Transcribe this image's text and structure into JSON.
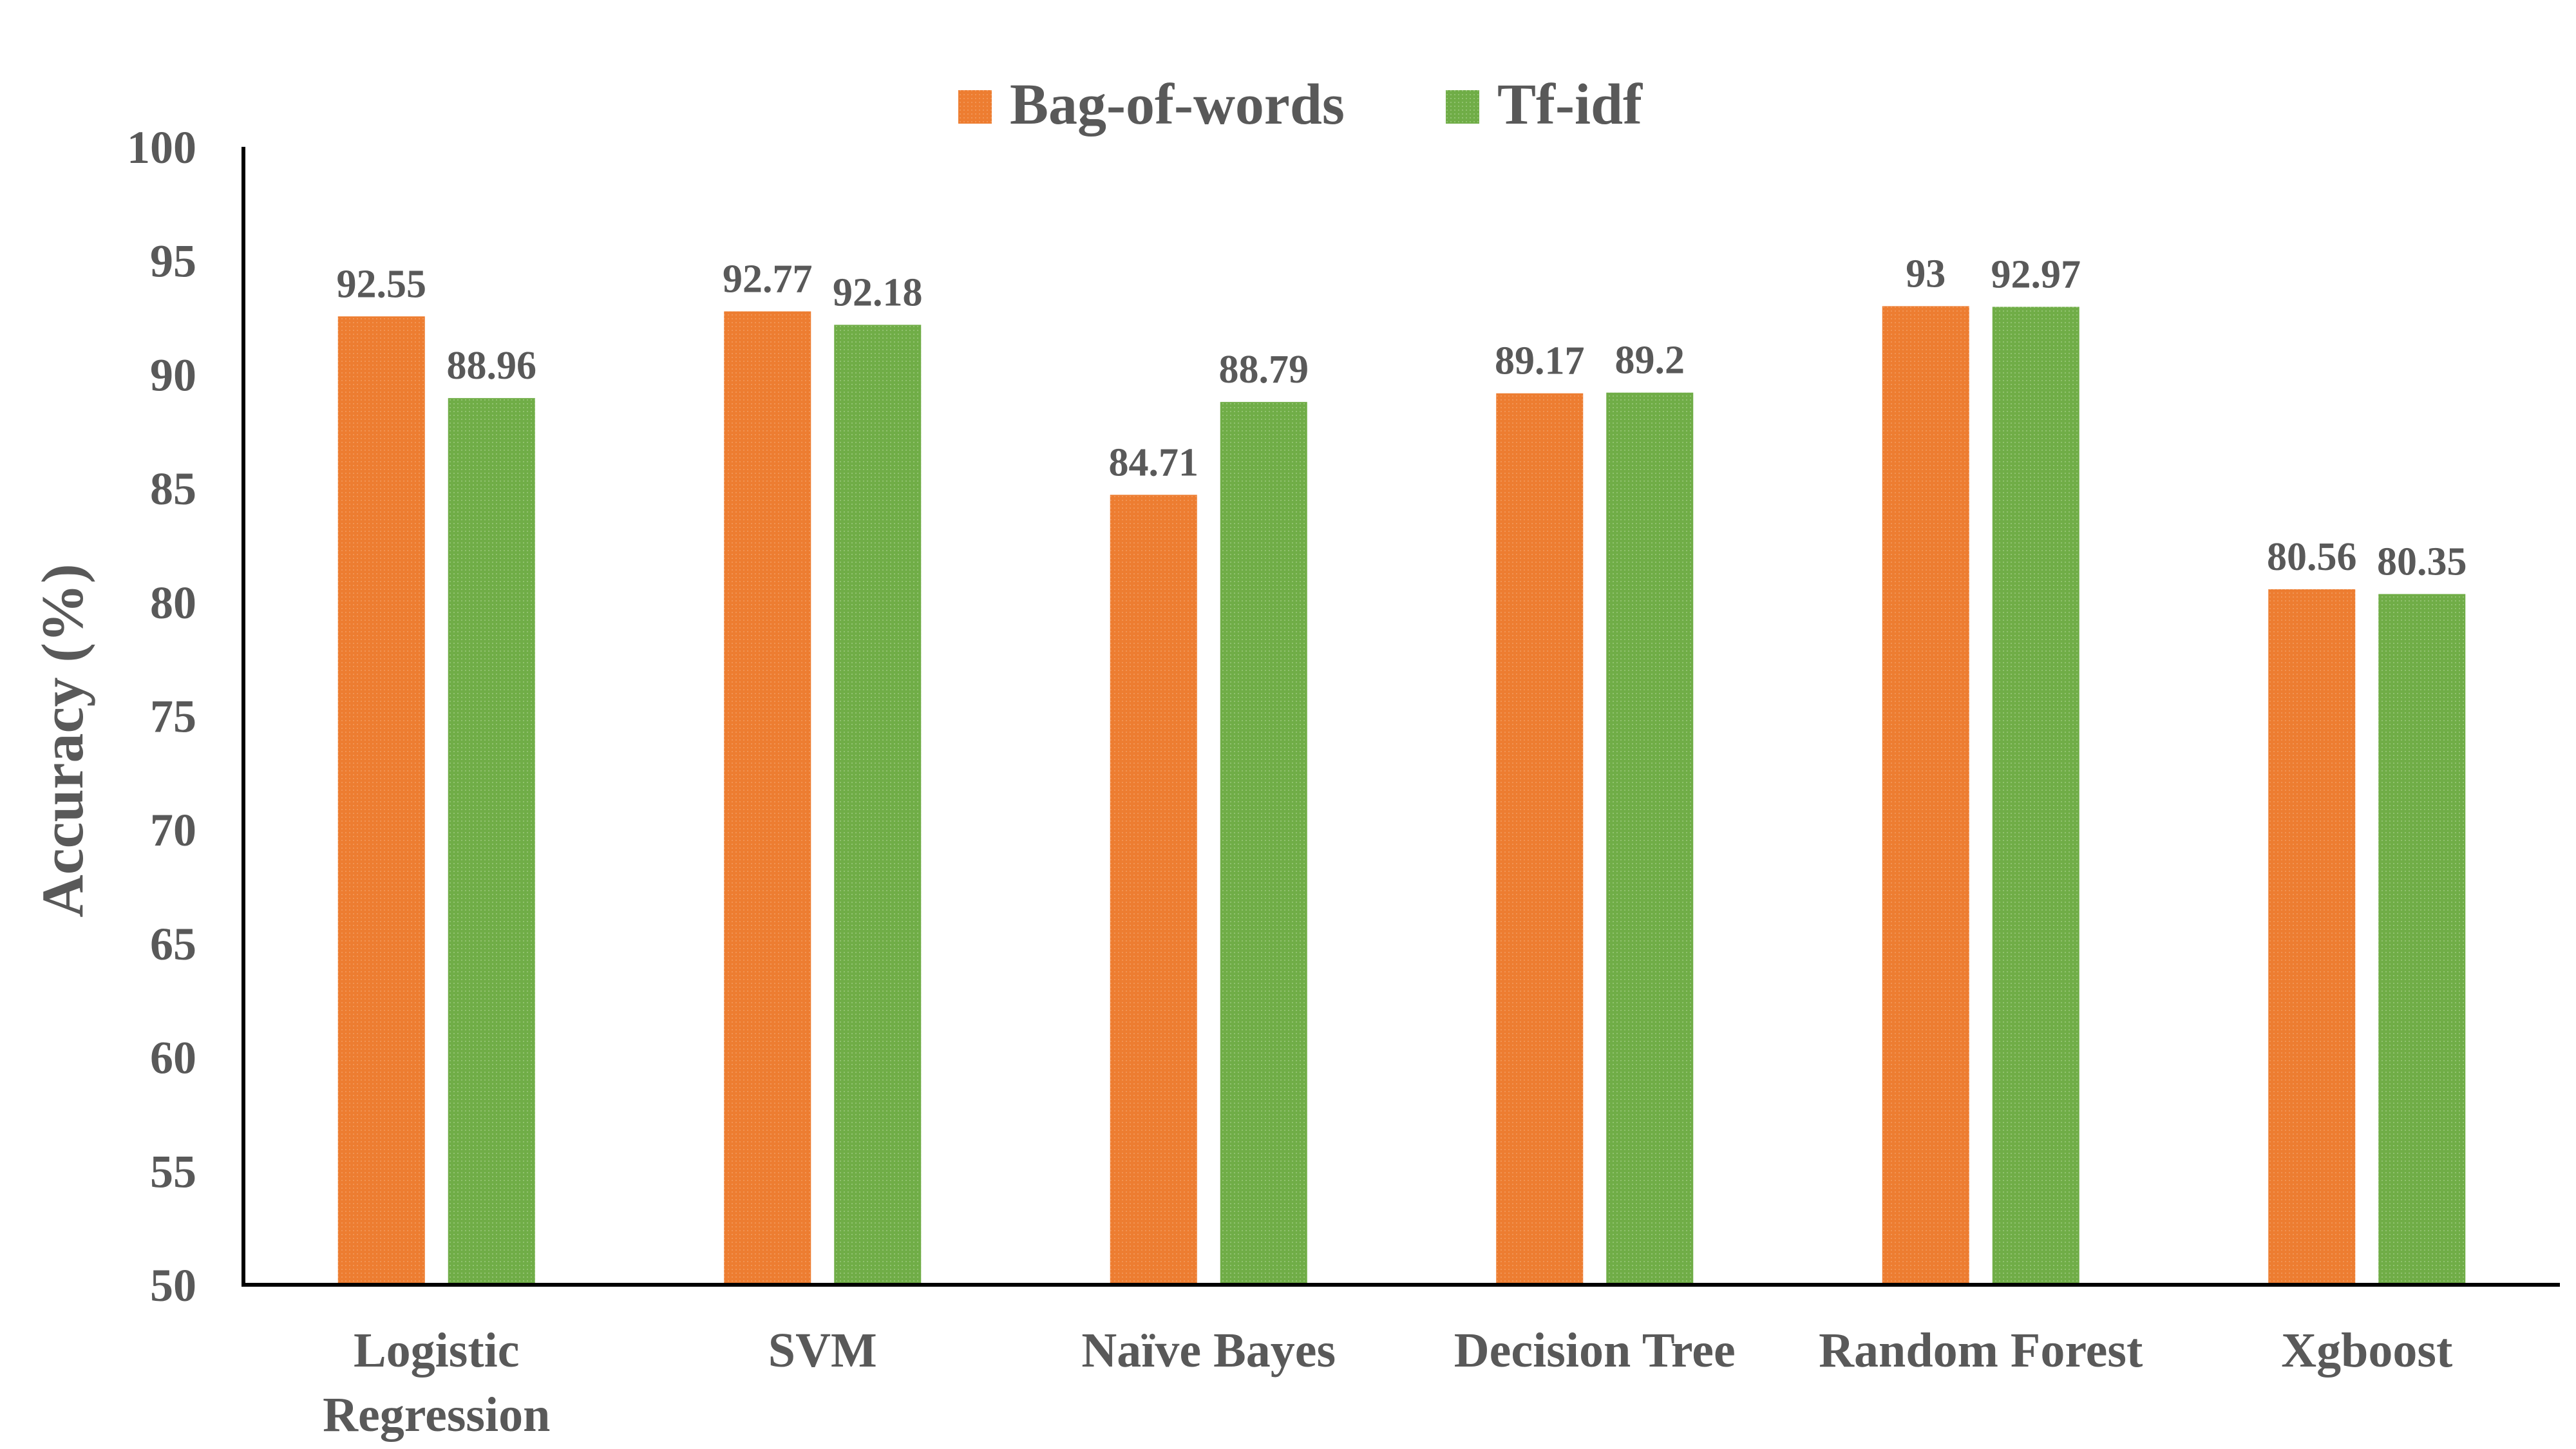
{
  "chart_data": {
    "type": "bar",
    "title": "",
    "xlabel": "",
    "ylabel": "Accuracy (%)",
    "ylim": [
      50,
      100
    ],
    "yticks": [
      50,
      55,
      60,
      65,
      70,
      75,
      80,
      85,
      90,
      95,
      100
    ],
    "grid": false,
    "legend_position": "top-center",
    "categories": [
      [
        "Logistic",
        "Regression"
      ],
      [
        "SVM"
      ],
      [
        "Naïve Bayes"
      ],
      [
        "Decision Tree"
      ],
      [
        "Random Forest"
      ],
      [
        "Xgboost"
      ]
    ],
    "series": [
      {
        "name": "Bag-of-words",
        "color": "#ED7D31",
        "values": [
          92.55,
          92.77,
          84.71,
          89.17,
          93,
          80.56
        ],
        "labels": [
          "92.55",
          "92.77",
          "84.71",
          "89.17",
          "93",
          "80.56"
        ]
      },
      {
        "name": "Tf-idf",
        "color": "#70AD47",
        "values": [
          88.96,
          92.18,
          88.79,
          89.2,
          92.97,
          80.35
        ],
        "labels": [
          "88.96",
          "92.18",
          "88.79",
          "89.2",
          "92.97",
          "80.35"
        ]
      }
    ]
  }
}
